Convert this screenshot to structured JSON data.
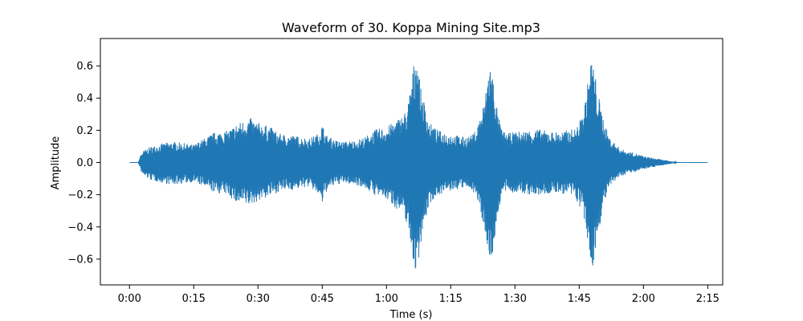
{
  "chart_data": {
    "type": "line",
    "title": "Waveform of 30. Koppa Mining Site.mp3",
    "xlabel": "Time (s)",
    "ylabel": "Amplitude",
    "xlim": [
      -6.8,
      138.5
    ],
    "ylim": [
      -0.76,
      0.77
    ],
    "grid": false,
    "legend": "none",
    "color": "#1f77b4",
    "x_ticks": [
      {
        "value": 0,
        "label": "0:00"
      },
      {
        "value": 15,
        "label": "0:15"
      },
      {
        "value": 30,
        "label": "0:30"
      },
      {
        "value": 45,
        "label": "0:45"
      },
      {
        "value": 60,
        "label": "1:00"
      },
      {
        "value": 75,
        "label": "1:15"
      },
      {
        "value": 90,
        "label": "1:30"
      },
      {
        "value": 105,
        "label": "1:45"
      },
      {
        "value": 120,
        "label": "2:00"
      },
      {
        "value": 135,
        "label": "2:15"
      }
    ],
    "y_ticks": [
      {
        "value": 0.6,
        "label": "0.6"
      },
      {
        "value": 0.4,
        "label": "0.4"
      },
      {
        "value": 0.2,
        "label": "0.2"
      },
      {
        "value": 0.0,
        "label": "0.0"
      },
      {
        "value": -0.2,
        "label": "−0.2"
      },
      {
        "value": -0.4,
        "label": "−0.4"
      },
      {
        "value": -0.6,
        "label": "−0.6"
      }
    ],
    "envelope": {
      "time": [
        0,
        2,
        2.5,
        3,
        5,
        8,
        10,
        13,
        15,
        18,
        20,
        23,
        25,
        28,
        30,
        33,
        35,
        38,
        40,
        42,
        44,
        45,
        46,
        48,
        50,
        53,
        55,
        57,
        58,
        60,
        62,
        64,
        65,
        66,
        67,
        68,
        69,
        70,
        72,
        75,
        78,
        80,
        81,
        82,
        83,
        84,
        85,
        86,
        87,
        88,
        90,
        93,
        95,
        97,
        100,
        102,
        104,
        105,
        106,
        107,
        108,
        109,
        110,
        111,
        112,
        114,
        116,
        118,
        120,
        122,
        124,
        126,
        128,
        130,
        132,
        135
      ],
      "upper": [
        0.0,
        0.0,
        0.04,
        0.07,
        0.1,
        0.12,
        0.13,
        0.12,
        0.11,
        0.16,
        0.19,
        0.2,
        0.24,
        0.28,
        0.25,
        0.22,
        0.18,
        0.17,
        0.16,
        0.15,
        0.18,
        0.24,
        0.17,
        0.14,
        0.13,
        0.14,
        0.16,
        0.2,
        0.21,
        0.22,
        0.26,
        0.3,
        0.36,
        0.55,
        0.72,
        0.46,
        0.36,
        0.25,
        0.2,
        0.18,
        0.16,
        0.17,
        0.21,
        0.3,
        0.4,
        0.65,
        0.52,
        0.3,
        0.2,
        0.18,
        0.19,
        0.2,
        0.21,
        0.2,
        0.19,
        0.2,
        0.21,
        0.25,
        0.32,
        0.5,
        0.68,
        0.5,
        0.35,
        0.24,
        0.16,
        0.1,
        0.07,
        0.06,
        0.04,
        0.03,
        0.02,
        0.01,
        0.0,
        0.0,
        0.0,
        0.0
      ],
      "lower": [
        0.0,
        0.0,
        -0.04,
        -0.08,
        -0.11,
        -0.13,
        -0.14,
        -0.13,
        -0.12,
        -0.16,
        -0.19,
        -0.2,
        -0.26,
        -0.27,
        -0.24,
        -0.21,
        -0.18,
        -0.17,
        -0.16,
        -0.15,
        -0.2,
        -0.26,
        -0.18,
        -0.14,
        -0.13,
        -0.14,
        -0.16,
        -0.2,
        -0.21,
        -0.23,
        -0.28,
        -0.33,
        -0.4,
        -0.58,
        -0.72,
        -0.5,
        -0.38,
        -0.26,
        -0.2,
        -0.18,
        -0.16,
        -0.17,
        -0.22,
        -0.32,
        -0.42,
        -0.65,
        -0.55,
        -0.32,
        -0.2,
        -0.18,
        -0.19,
        -0.2,
        -0.21,
        -0.2,
        -0.19,
        -0.2,
        -0.22,
        -0.27,
        -0.34,
        -0.52,
        -0.68,
        -0.52,
        -0.36,
        -0.24,
        -0.16,
        -0.1,
        -0.07,
        -0.06,
        -0.04,
        -0.03,
        -0.02,
        -0.01,
        0.0,
        0.0,
        0.0,
        0.0
      ]
    }
  }
}
